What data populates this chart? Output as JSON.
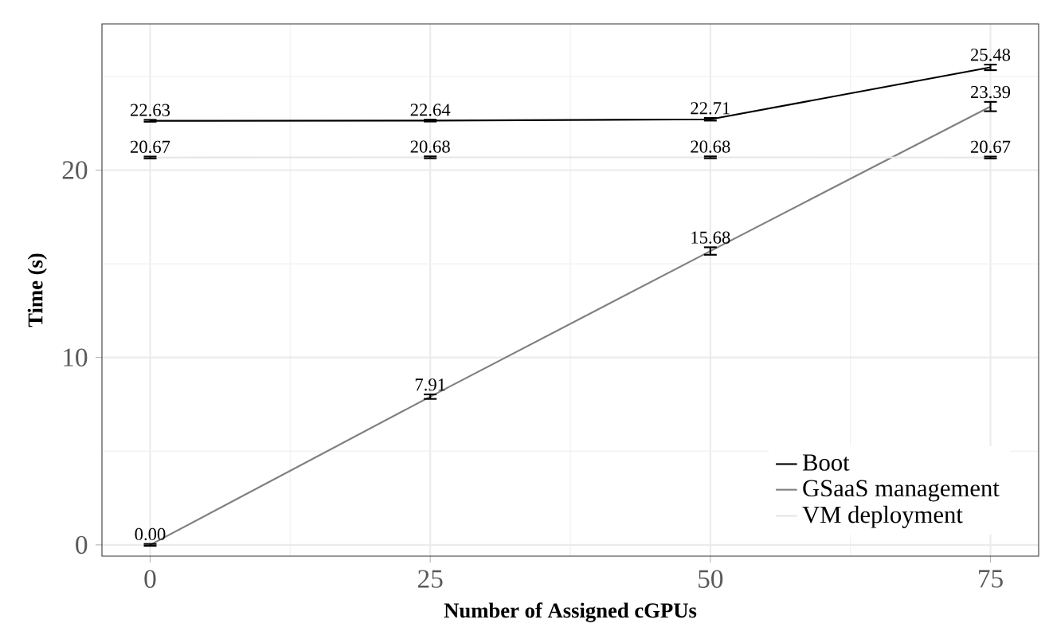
{
  "chart_data": {
    "type": "line",
    "xlabel": "Number of Assigned cGPUs",
    "ylabel": "Time (s)",
    "x": [
      0,
      25,
      50,
      75
    ],
    "series": [
      {
        "name": "Boot",
        "color": "#000000",
        "values": [
          22.63,
          22.64,
          22.71,
          25.48
        ],
        "errors": [
          0.05,
          0.05,
          0.07,
          0.15
        ],
        "value_labels": [
          "22.63",
          "22.64",
          "22.71",
          "25.48"
        ]
      },
      {
        "name": "GSaaS management",
        "color": "#808080",
        "values": [
          0,
          7.91,
          15.68,
          23.39
        ],
        "errors": [
          0.05,
          0.12,
          0.2,
          0.25
        ],
        "value_labels": [
          "0.00",
          "7.91",
          "15.68",
          "23.39"
        ]
      },
      {
        "name": "VM deployment",
        "color": "#e6e6e6",
        "values": [
          20.67,
          20.68,
          20.68,
          20.67
        ],
        "errors": [
          0.05,
          0.05,
          0.05,
          0.05
        ],
        "value_labels": [
          "20.67",
          "20.68",
          "20.68",
          "20.67"
        ]
      }
    ],
    "xlim": [
      -4.3,
      79.3
    ],
    "ylim": [
      -0.6,
      27.8
    ],
    "xticks": [
      0,
      25,
      50,
      75
    ],
    "yticks": [
      0,
      10,
      20
    ],
    "grid": true,
    "legend": "bottom right",
    "line_style": "solid"
  }
}
